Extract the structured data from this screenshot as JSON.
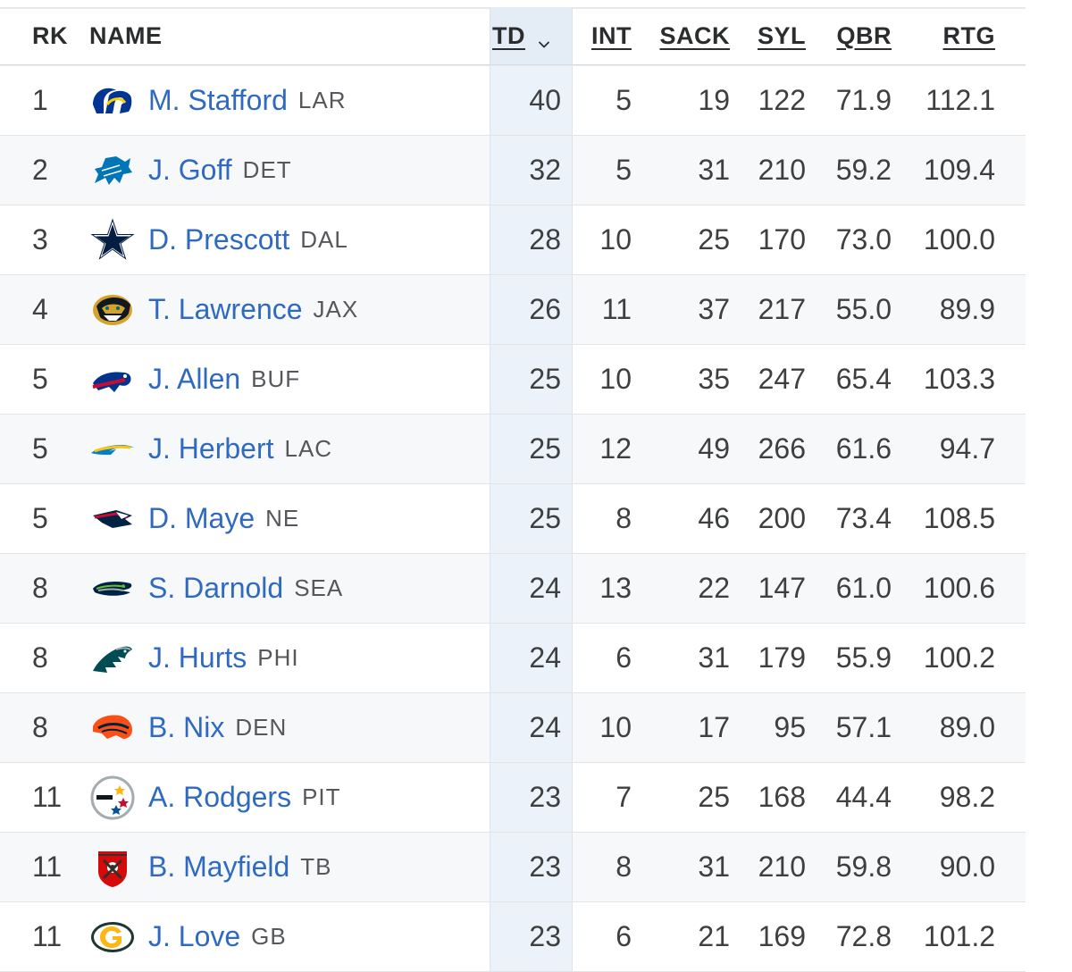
{
  "headers": {
    "rk": "RK",
    "name": "NAME",
    "td": "TD",
    "int": "INT",
    "sack": "SACK",
    "syl": "SYL",
    "qbr": "QBR",
    "rtg": "RTG"
  },
  "sort": {
    "column": "TD",
    "direction": "descending",
    "icon": "chevron-down-icon"
  },
  "colors": {
    "link": "#2f6ac0",
    "sorted_column_bg": "#ebf2fa",
    "row_alt_bg": "#f7f8f9"
  },
  "rows": [
    {
      "rk": "1",
      "name": "M. Stafford",
      "team": "LAR",
      "logo": "rams-logo",
      "td": "40",
      "int": "5",
      "sack": "19",
      "syl": "122",
      "qbr": "71.9",
      "rtg": "112.1"
    },
    {
      "rk": "2",
      "name": "J. Goff",
      "team": "DET",
      "logo": "lions-logo",
      "td": "32",
      "int": "5",
      "sack": "31",
      "syl": "210",
      "qbr": "59.2",
      "rtg": "109.4"
    },
    {
      "rk": "3",
      "name": "D. Prescott",
      "team": "DAL",
      "logo": "cowboys-logo",
      "td": "28",
      "int": "10",
      "sack": "25",
      "syl": "170",
      "qbr": "73.0",
      "rtg": "100.0"
    },
    {
      "rk": "4",
      "name": "T. Lawrence",
      "team": "JAX",
      "logo": "jaguars-logo",
      "td": "26",
      "int": "11",
      "sack": "37",
      "syl": "217",
      "qbr": "55.0",
      "rtg": "89.9"
    },
    {
      "rk": "5",
      "name": "J. Allen",
      "team": "BUF",
      "logo": "bills-logo",
      "td": "25",
      "int": "10",
      "sack": "35",
      "syl": "247",
      "qbr": "65.4",
      "rtg": "103.3"
    },
    {
      "rk": "5",
      "name": "J. Herbert",
      "team": "LAC",
      "logo": "chargers-logo",
      "td": "25",
      "int": "12",
      "sack": "49",
      "syl": "266",
      "qbr": "61.6",
      "rtg": "94.7"
    },
    {
      "rk": "5",
      "name": "D. Maye",
      "team": "NE",
      "logo": "patriots-logo",
      "td": "25",
      "int": "8",
      "sack": "46",
      "syl": "200",
      "qbr": "73.4",
      "rtg": "108.5"
    },
    {
      "rk": "8",
      "name": "S. Darnold",
      "team": "SEA",
      "logo": "seahawks-logo",
      "td": "24",
      "int": "13",
      "sack": "22",
      "syl": "147",
      "qbr": "61.0",
      "rtg": "100.6"
    },
    {
      "rk": "8",
      "name": "J. Hurts",
      "team": "PHI",
      "logo": "eagles-logo",
      "td": "24",
      "int": "6",
      "sack": "31",
      "syl": "179",
      "qbr": "55.9",
      "rtg": "100.2"
    },
    {
      "rk": "8",
      "name": "B. Nix",
      "team": "DEN",
      "logo": "broncos-logo",
      "td": "24",
      "int": "10",
      "sack": "17",
      "syl": "95",
      "qbr": "57.1",
      "rtg": "89.0"
    },
    {
      "rk": "11",
      "name": "A. Rodgers",
      "team": "PIT",
      "logo": "steelers-logo",
      "td": "23",
      "int": "7",
      "sack": "25",
      "syl": "168",
      "qbr": "44.4",
      "rtg": "98.2"
    },
    {
      "rk": "11",
      "name": "B. Mayfield",
      "team": "TB",
      "logo": "buccaneers-logo",
      "td": "23",
      "int": "8",
      "sack": "31",
      "syl": "210",
      "qbr": "59.8",
      "rtg": "90.0"
    },
    {
      "rk": "11",
      "name": "J. Love",
      "team": "GB",
      "logo": "packers-logo",
      "td": "23",
      "int": "6",
      "sack": "21",
      "syl": "169",
      "qbr": "72.8",
      "rtg": "101.2"
    }
  ]
}
